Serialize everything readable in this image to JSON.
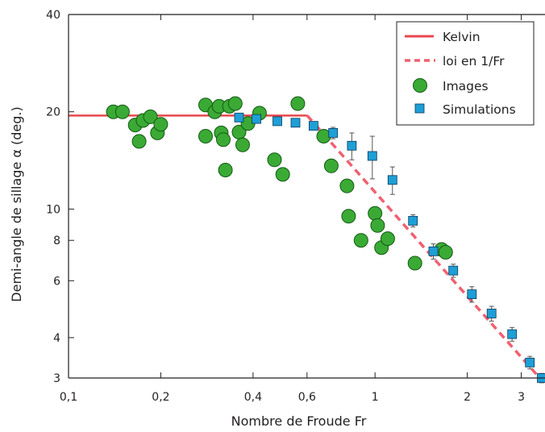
{
  "chart_data": {
    "type": "scatter",
    "title": "",
    "xlabel": "Nombre de Froude Fr",
    "ylabel": "Demi-angle de sillage α (deg.)",
    "x_scale": "log",
    "y_scale": "log",
    "xlim": [
      0.1,
      3.5
    ],
    "ylim": [
      3,
      40
    ],
    "x_ticks": [
      {
        "value": 0.1,
        "label": "0,1"
      },
      {
        "value": 0.2,
        "label": "0,2"
      },
      {
        "value": 0.4,
        "label": "0,4"
      },
      {
        "value": 0.6,
        "label": "0,6"
      },
      {
        "value": 1,
        "label": "1"
      },
      {
        "value": 2,
        "label": "2"
      },
      {
        "value": 3,
        "label": "3"
      }
    ],
    "y_ticks": [
      {
        "value": 3,
        "label": "3"
      },
      {
        "value": 4,
        "label": "4"
      },
      {
        "value": 6,
        "label": "6"
      },
      {
        "value": 8,
        "label": "8"
      },
      {
        "value": 10,
        "label": "10"
      },
      {
        "value": 20,
        "label": "20"
      },
      {
        "value": 40,
        "label": "40"
      }
    ],
    "grid": false,
    "legend_position": "top-right",
    "series": [
      {
        "name": "Kelvin",
        "kind": "line",
        "style": "solid",
        "color": "#e8474d",
        "x": [
          0.1,
          0.6
        ],
        "y": [
          19.47,
          19.47
        ]
      },
      {
        "name": "loi en 1/Fr",
        "kind": "line",
        "style": "dashed",
        "color": "#f06070",
        "x": [
          0.6,
          3.5
        ],
        "y": [
          19.5,
          2.95
        ]
      },
      {
        "name": "Images",
        "kind": "scatter",
        "marker": "circle",
        "color": "#3aaa35",
        "edge": "#145a14",
        "points": [
          {
            "x": 0.14,
            "y": 20
          },
          {
            "x": 0.15,
            "y": 20
          },
          {
            "x": 0.165,
            "y": 18.2
          },
          {
            "x": 0.17,
            "y": 16.2
          },
          {
            "x": 0.175,
            "y": 18.8
          },
          {
            "x": 0.185,
            "y": 19.3
          },
          {
            "x": 0.195,
            "y": 17.2
          },
          {
            "x": 0.2,
            "y": 18.3
          },
          {
            "x": 0.28,
            "y": 21
          },
          {
            "x": 0.28,
            "y": 16.8
          },
          {
            "x": 0.3,
            "y": 20
          },
          {
            "x": 0.31,
            "y": 20.8
          },
          {
            "x": 0.315,
            "y": 17.2
          },
          {
            "x": 0.32,
            "y": 16.4
          },
          {
            "x": 0.325,
            "y": 13.2
          },
          {
            "x": 0.335,
            "y": 20.8
          },
          {
            "x": 0.35,
            "y": 21.2
          },
          {
            "x": 0.36,
            "y": 17.3
          },
          {
            "x": 0.37,
            "y": 15.8
          },
          {
            "x": 0.385,
            "y": 18.4
          },
          {
            "x": 0.42,
            "y": 19.8
          },
          {
            "x": 0.47,
            "y": 14.2
          },
          {
            "x": 0.5,
            "y": 12.8
          },
          {
            "x": 0.56,
            "y": 21.2
          },
          {
            "x": 0.68,
            "y": 16.8
          },
          {
            "x": 0.72,
            "y": 13.6
          },
          {
            "x": 0.81,
            "y": 11.8
          },
          {
            "x": 0.82,
            "y": 9.5
          },
          {
            "x": 0.9,
            "y": 8
          },
          {
            "x": 1.0,
            "y": 9.7
          },
          {
            "x": 1.02,
            "y": 8.9
          },
          {
            "x": 1.05,
            "y": 7.6
          },
          {
            "x": 1.1,
            "y": 8.1
          },
          {
            "x": 1.35,
            "y": 6.8
          },
          {
            "x": 1.65,
            "y": 7.5
          },
          {
            "x": 1.7,
            "y": 7.35
          }
        ]
      },
      {
        "name": "Simulations",
        "kind": "scatter",
        "marker": "square",
        "color": "#1e9fd6",
        "edge": "#0a3a5c",
        "points": [
          {
            "x": 0.36,
            "y": 19.2
          },
          {
            "x": 0.41,
            "y": 19
          },
          {
            "x": 0.48,
            "y": 18.7
          },
          {
            "x": 0.55,
            "y": 18.5
          },
          {
            "x": 0.63,
            "y": 18.1
          },
          {
            "x": 0.73,
            "y": 17.2,
            "err": 0.7
          },
          {
            "x": 0.84,
            "y": 15.7,
            "err": 1.5
          },
          {
            "x": 0.98,
            "y": 14.6,
            "err": 2.2
          },
          {
            "x": 1.14,
            "y": 12.3,
            "err": 1.2
          },
          {
            "x": 1.33,
            "y": 9.2,
            "err": 0.4
          },
          {
            "x": 1.55,
            "y": 7.4,
            "err": 0.4
          },
          {
            "x": 1.8,
            "y": 6.45,
            "err": 0.3
          },
          {
            "x": 2.07,
            "y": 5.45,
            "err": 0.3
          },
          {
            "x": 2.4,
            "y": 4.75,
            "err": 0.25
          },
          {
            "x": 2.8,
            "y": 4.1,
            "err": 0.2
          },
          {
            "x": 3.2,
            "y": 3.35,
            "err": 0.15
          },
          {
            "x": 3.5,
            "y": 3.0,
            "err": 0.1
          }
        ]
      }
    ]
  }
}
